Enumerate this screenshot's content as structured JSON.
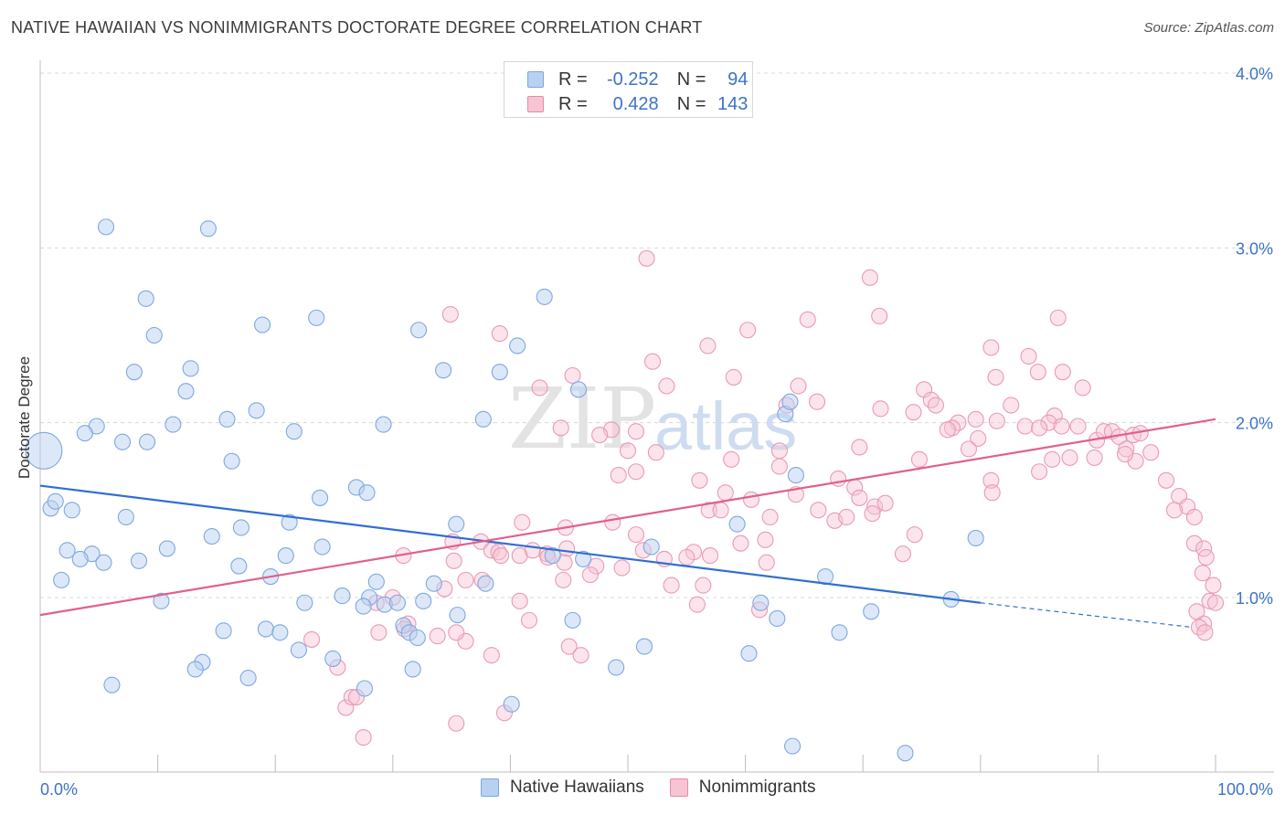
{
  "title": "NATIVE HAWAIIAN VS NONIMMIGRANTS DOCTORATE DEGREE CORRELATION CHART",
  "source": "Source: ZipAtlas.com",
  "watermark": {
    "zip": "ZIP",
    "atlas": "atlas"
  },
  "legend": {
    "r_label": "R =",
    "n_label": "N =",
    "series": [
      {
        "name": "Native Hawaiians",
        "r": "-0.252",
        "n": "94",
        "color": "#7aa6e0",
        "fill": "#b9d1f1"
      },
      {
        "name": "Nonimmigrants",
        "r": "0.428",
        "n": "143",
        "color": "#e58aa8",
        "fill": "#f7c4d4"
      }
    ]
  },
  "colors": {
    "blue_line": "#2f6fd1",
    "pink_line": "#e0608c",
    "tick_label": "#3d73c7",
    "grid": "#d8d8d8"
  },
  "chart_data": {
    "type": "scatter",
    "xlabel": "",
    "ylabel": "Doctorate Degree",
    "xlim": [
      0,
      100
    ],
    "ylim": [
      0,
      4.1
    ],
    "x_tick_labels": [
      {
        "v": 0,
        "label": "0.0%"
      },
      {
        "v": 100,
        "label": "100.0%"
      }
    ],
    "y_ticks": [
      {
        "v": 1.0,
        "label": "1.0%"
      },
      {
        "v": 2.0,
        "label": "2.0%"
      },
      {
        "v": 3.0,
        "label": "3.0%"
      },
      {
        "v": 4.0,
        "label": "4.0%"
      }
    ],
    "x_minor_ticks": [
      0,
      10,
      20,
      30,
      40,
      50,
      60,
      70,
      80,
      90,
      100
    ],
    "series": [
      {
        "name": "Native Hawaiians",
        "trend": {
          "x0": 0,
          "y0": 1.64,
          "x1": 80,
          "y1": 0.97,
          "dash_to_x": 98,
          "dash_to_y": 0.83
        },
        "points": [
          [
            0.3,
            1.84,
            "big"
          ],
          [
            5.6,
            3.12
          ],
          [
            14.3,
            3.11
          ],
          [
            9.0,
            2.71
          ],
          [
            42.9,
            2.72
          ],
          [
            9.7,
            2.5
          ],
          [
            18.9,
            2.56
          ],
          [
            23.5,
            2.6
          ],
          [
            32.2,
            2.53
          ],
          [
            40.6,
            2.44
          ],
          [
            8.0,
            2.29
          ],
          [
            12.8,
            2.31
          ],
          [
            34.3,
            2.3
          ],
          [
            39.1,
            2.29
          ],
          [
            12.4,
            2.18
          ],
          [
            45.8,
            2.19
          ],
          [
            18.4,
            2.07
          ],
          [
            63.4,
            2.05
          ],
          [
            63.8,
            2.12
          ],
          [
            15.9,
            2.02
          ],
          [
            37.7,
            2.02
          ],
          [
            11.3,
            1.99
          ],
          [
            29.2,
            1.99
          ],
          [
            4.8,
            1.98
          ],
          [
            3.8,
            1.94
          ],
          [
            21.6,
            1.95
          ],
          [
            7.0,
            1.89
          ],
          [
            9.1,
            1.89
          ],
          [
            16.3,
            1.78
          ],
          [
            64.3,
            1.7
          ],
          [
            26.9,
            1.63
          ],
          [
            27.8,
            1.6
          ],
          [
            23.8,
            1.57
          ],
          [
            0.9,
            1.51
          ],
          [
            1.3,
            1.55
          ],
          [
            2.7,
            1.5
          ],
          [
            7.3,
            1.46
          ],
          [
            21.2,
            1.43
          ],
          [
            17.1,
            1.4
          ],
          [
            35.4,
            1.42
          ],
          [
            59.3,
            1.42
          ],
          [
            14.6,
            1.35
          ],
          [
            2.3,
            1.27
          ],
          [
            4.4,
            1.25
          ],
          [
            10.8,
            1.28
          ],
          [
            24.0,
            1.29
          ],
          [
            52.0,
            1.29
          ],
          [
            79.6,
            1.34
          ],
          [
            3.4,
            1.22
          ],
          [
            5.4,
            1.2
          ],
          [
            8.4,
            1.21
          ],
          [
            20.9,
            1.24
          ],
          [
            16.9,
            1.18
          ],
          [
            43.6,
            1.24
          ],
          [
            46.2,
            1.22
          ],
          [
            1.8,
            1.1
          ],
          [
            19.6,
            1.12
          ],
          [
            28.6,
            1.09
          ],
          [
            33.5,
            1.08
          ],
          [
            37.9,
            1.08
          ],
          [
            66.8,
            1.12
          ],
          [
            25.7,
            1.01
          ],
          [
            28.0,
            1.0
          ],
          [
            10.3,
            0.98
          ],
          [
            22.5,
            0.97
          ],
          [
            27.5,
            0.95
          ],
          [
            29.3,
            0.96
          ],
          [
            30.4,
            0.97
          ],
          [
            32.6,
            0.98
          ],
          [
            61.3,
            0.97
          ],
          [
            77.5,
            0.99
          ],
          [
            70.7,
            0.92
          ],
          [
            35.5,
            0.9
          ],
          [
            45.3,
            0.87
          ],
          [
            30.9,
            0.84
          ],
          [
            62.7,
            0.88
          ],
          [
            15.6,
            0.81
          ],
          [
            19.2,
            0.82
          ],
          [
            20.4,
            0.8
          ],
          [
            31.4,
            0.8
          ],
          [
            68.0,
            0.8
          ],
          [
            32.1,
            0.77
          ],
          [
            51.4,
            0.72
          ],
          [
            22.0,
            0.7
          ],
          [
            24.9,
            0.65
          ],
          [
            60.3,
            0.68
          ],
          [
            13.8,
            0.63
          ],
          [
            13.2,
            0.59
          ],
          [
            49.0,
            0.6
          ],
          [
            31.7,
            0.59
          ],
          [
            6.1,
            0.5
          ],
          [
            17.7,
            0.54
          ],
          [
            27.6,
            0.48
          ],
          [
            40.1,
            0.39
          ],
          [
            64.0,
            0.15
          ],
          [
            73.6,
            0.11
          ]
        ]
      },
      {
        "name": "Nonimmigrants",
        "trend": {
          "x0": 0,
          "y0": 0.9,
          "x1": 100,
          "y1": 2.02
        },
        "points": [
          [
            51.6,
            2.94
          ],
          [
            70.6,
            2.83
          ],
          [
            34.9,
            2.62
          ],
          [
            39.1,
            2.51
          ],
          [
            71.4,
            2.61
          ],
          [
            80.9,
            2.43
          ],
          [
            86.6,
            2.6
          ],
          [
            45.3,
            2.27
          ],
          [
            60.2,
            2.53
          ],
          [
            65.3,
            2.59
          ],
          [
            52.1,
            2.35
          ],
          [
            56.8,
            2.44
          ],
          [
            64.5,
            2.21
          ],
          [
            84.1,
            2.38
          ],
          [
            87.0,
            2.29
          ],
          [
            88.7,
            2.2
          ],
          [
            42.5,
            2.2
          ],
          [
            53.3,
            2.21
          ],
          [
            59.0,
            2.26
          ],
          [
            81.3,
            2.26
          ],
          [
            84.9,
            2.29
          ],
          [
            66.1,
            2.12
          ],
          [
            63.5,
            2.1
          ],
          [
            71.5,
            2.08
          ],
          [
            75.2,
            2.19
          ],
          [
            75.8,
            2.13
          ],
          [
            76.2,
            2.1
          ],
          [
            82.6,
            2.1
          ],
          [
            86.3,
            2.04
          ],
          [
            74.3,
            2.06
          ],
          [
            85.8,
            2.0
          ],
          [
            86.9,
            1.98
          ],
          [
            78.1,
            2.0
          ],
          [
            79.6,
            2.02
          ],
          [
            81.4,
            2.01
          ],
          [
            83.8,
            1.98
          ],
          [
            85.0,
            1.97
          ],
          [
            88.3,
            1.98
          ],
          [
            48.6,
            1.96
          ],
          [
            50.7,
            1.95
          ],
          [
            77.6,
            1.97
          ],
          [
            79.8,
            1.91
          ],
          [
            47.6,
            1.93
          ],
          [
            77.2,
            1.96
          ],
          [
            89.9,
            1.9
          ],
          [
            90.5,
            1.95
          ],
          [
            91.2,
            1.95
          ],
          [
            91.8,
            1.92
          ],
          [
            93.0,
            1.93
          ],
          [
            93.6,
            1.94
          ],
          [
            92.4,
            1.85
          ],
          [
            69.7,
            1.86
          ],
          [
            62.9,
            1.84
          ],
          [
            58.8,
            1.79
          ],
          [
            79.0,
            1.85
          ],
          [
            89.7,
            1.8
          ],
          [
            94.5,
            1.83
          ],
          [
            93.2,
            1.78
          ],
          [
            50.0,
            1.84
          ],
          [
            52.4,
            1.83
          ],
          [
            49.2,
            1.7
          ],
          [
            50.7,
            1.72
          ],
          [
            62.9,
            1.75
          ],
          [
            67.9,
            1.68
          ],
          [
            74.8,
            1.79
          ],
          [
            80.9,
            1.67
          ],
          [
            85.0,
            1.72
          ],
          [
            87.6,
            1.8
          ],
          [
            86.1,
            1.79
          ],
          [
            92.3,
            1.82
          ],
          [
            95.8,
            1.67
          ],
          [
            44.3,
            1.97
          ],
          [
            56.1,
            1.67
          ],
          [
            58.3,
            1.6
          ],
          [
            60.5,
            1.56
          ],
          [
            64.3,
            1.59
          ],
          [
            69.3,
            1.63
          ],
          [
            69.7,
            1.57
          ],
          [
            71.0,
            1.52
          ],
          [
            71.9,
            1.54
          ],
          [
            81.0,
            1.6
          ],
          [
            96.9,
            1.58
          ],
          [
            97.6,
            1.52
          ],
          [
            96.5,
            1.5
          ],
          [
            98.2,
            1.46
          ],
          [
            56.9,
            1.5
          ],
          [
            57.9,
            1.5
          ],
          [
            62.1,
            1.46
          ],
          [
            66.2,
            1.5
          ],
          [
            67.6,
            1.44
          ],
          [
            68.6,
            1.46
          ],
          [
            70.8,
            1.48
          ],
          [
            50.7,
            1.36
          ],
          [
            48.7,
            1.43
          ],
          [
            44.7,
            1.4
          ],
          [
            41.0,
            1.43
          ],
          [
            35.1,
            1.32
          ],
          [
            37.5,
            1.32
          ],
          [
            38.4,
            1.27
          ],
          [
            39.0,
            1.26
          ],
          [
            40.8,
            1.24
          ],
          [
            43.1,
            1.25
          ],
          [
            44.8,
            1.28
          ],
          [
            55.6,
            1.26
          ],
          [
            57.0,
            1.24
          ],
          [
            59.6,
            1.31
          ],
          [
            61.7,
            1.33
          ],
          [
            74.4,
            1.36
          ],
          [
            73.4,
            1.25
          ],
          [
            98.2,
            1.31
          ],
          [
            99.0,
            1.28
          ],
          [
            99.2,
            1.23
          ],
          [
            98.9,
            1.14
          ],
          [
            30.9,
            1.24
          ],
          [
            35.2,
            1.21
          ],
          [
            39.2,
            1.24
          ],
          [
            41.9,
            1.27
          ],
          [
            43.2,
            1.23
          ],
          [
            44.6,
            1.2
          ],
          [
            47.3,
            1.18
          ],
          [
            49.5,
            1.17
          ],
          [
            53.1,
            1.22
          ],
          [
            55.0,
            1.23
          ],
          [
            51.3,
            1.27
          ],
          [
            61.8,
            1.2
          ],
          [
            36.2,
            1.1
          ],
          [
            37.6,
            1.1
          ],
          [
            44.5,
            1.1
          ],
          [
            46.8,
            1.13
          ],
          [
            53.7,
            1.07
          ],
          [
            56.4,
            1.07
          ],
          [
            30.0,
            1.0
          ],
          [
            34.4,
            1.05
          ],
          [
            40.8,
            0.98
          ],
          [
            55.9,
            0.96
          ],
          [
            61.2,
            0.93
          ],
          [
            99.8,
            1.07
          ],
          [
            99.5,
            0.98
          ],
          [
            28.6,
            0.97
          ],
          [
            41.6,
            0.87
          ],
          [
            31.3,
            0.85
          ],
          [
            23.1,
            0.76
          ],
          [
            25.3,
            0.6
          ],
          [
            28.8,
            0.8
          ],
          [
            31.0,
            0.82
          ],
          [
            33.8,
            0.78
          ],
          [
            36.2,
            0.75
          ],
          [
            38.4,
            0.67
          ],
          [
            45.0,
            0.72
          ],
          [
            35.4,
            0.8
          ],
          [
            26.0,
            0.37
          ],
          [
            26.5,
            0.43
          ],
          [
            26.9,
            0.43
          ],
          [
            27.5,
            0.2
          ],
          [
            35.4,
            0.28
          ],
          [
            39.5,
            0.34
          ],
          [
            46.0,
            0.67
          ],
          [
            99.0,
            0.85
          ],
          [
            98.4,
            0.92
          ],
          [
            100.0,
            0.97
          ],
          [
            98.6,
            0.83
          ],
          [
            99.1,
            0.8
          ]
        ]
      }
    ]
  },
  "x_axis": {
    "left_label": "0.0%",
    "right_label": "100.0%"
  }
}
